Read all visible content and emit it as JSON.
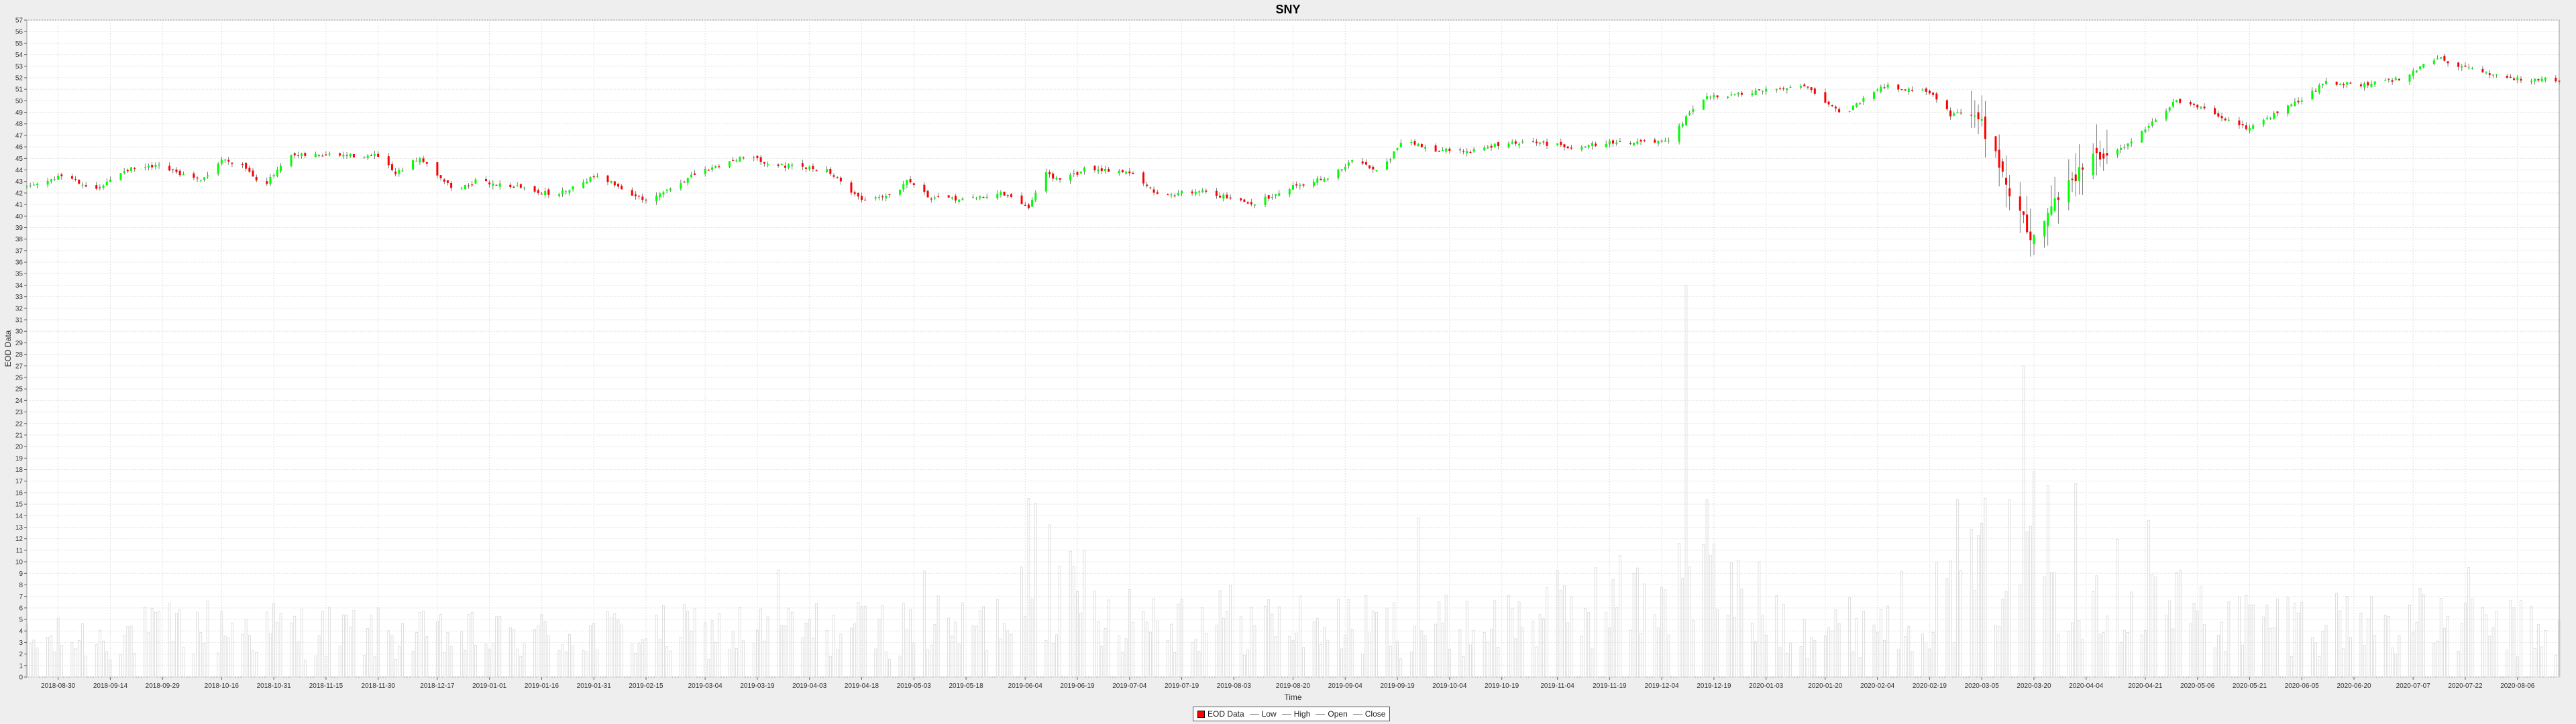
{
  "chart_data": {
    "type": "candlestick",
    "title": "SNY",
    "xlabel": "Time",
    "ylabel": "EOD Data",
    "ylim": [
      0,
      57
    ],
    "yticks": [
      0,
      1,
      2,
      3,
      4,
      5,
      6,
      7,
      8,
      9,
      10,
      11,
      12,
      13,
      14,
      15,
      16,
      17,
      18,
      19,
      20,
      21,
      22,
      23,
      24,
      25,
      26,
      27,
      28,
      29,
      30,
      31,
      32,
      33,
      34,
      35,
      36,
      37,
      38,
      39,
      40,
      41,
      42,
      43,
      44,
      45,
      46,
      47,
      48,
      49,
      50,
      51,
      52,
      53,
      54,
      55,
      56,
      57
    ],
    "x_start": "2018-08-21",
    "x_end": "2020-08-18",
    "xticks": [
      "2018-08-30",
      "2018-09-14",
      "2018-09-29",
      "2018-10-16",
      "2018-10-31",
      "2018-11-15",
      "2018-11-30",
      "2018-12-17",
      "2019-01-01",
      "2019-01-16",
      "2019-01-31",
      "2019-02-15",
      "2019-03-04",
      "2019-03-19",
      "2019-04-03",
      "2019-04-18",
      "2019-05-03",
      "2019-05-18",
      "2019-06-04",
      "2019-06-19",
      "2019-07-04",
      "2019-07-19",
      "2019-08-03",
      "2019-08-20",
      "2019-09-04",
      "2019-09-19",
      "2019-10-04",
      "2019-10-19",
      "2019-11-04",
      "2019-11-19",
      "2019-12-04",
      "2019-12-19",
      "2020-01-03",
      "2020-01-20",
      "2020-02-04",
      "2020-02-19",
      "2020-03-05",
      "2020-03-20",
      "2020-04-04",
      "2020-04-21",
      "2020-05-06",
      "2020-05-21",
      "2020-06-05",
      "2020-06-20",
      "2020-07-07",
      "2020-07-22",
      "2020-08-06"
    ],
    "close_path": [
      [
        "2018-08-21",
        42.5
      ],
      [
        "2018-09-01",
        43.6
      ],
      [
        "2018-09-10",
        42.2
      ],
      [
        "2018-09-18",
        44.0
      ],
      [
        "2018-09-28",
        44.3
      ],
      [
        "2018-10-10",
        43.0
      ],
      [
        "2018-10-16",
        44.9
      ],
      [
        "2018-10-22",
        44.5
      ],
      [
        "2018-10-28",
        42.6
      ],
      [
        "2018-11-05",
        45.2
      ],
      [
        "2018-11-15",
        45.3
      ],
      [
        "2018-11-30",
        45.2
      ],
      [
        "2018-12-05",
        43.6
      ],
      [
        "2018-12-12",
        45.1
      ],
      [
        "2018-12-22",
        42.2
      ],
      [
        "2018-12-28",
        43.0
      ],
      [
        "2019-01-08",
        42.6
      ],
      [
        "2019-01-20",
        41.8
      ],
      [
        "2019-02-01",
        43.6
      ],
      [
        "2019-02-15",
        41.2
      ],
      [
        "2019-03-01",
        43.6
      ],
      [
        "2019-03-15",
        45.2
      ],
      [
        "2019-03-25",
        44.4
      ],
      [
        "2019-04-08",
        44.0
      ],
      [
        "2019-04-18",
        41.4
      ],
      [
        "2019-04-28",
        42.0
      ],
      [
        "2019-05-01",
        43.3
      ],
      [
        "2019-05-08",
        41.5
      ],
      [
        "2019-05-20",
        41.5
      ],
      [
        "2019-05-28",
        42.0
      ],
      [
        "2019-06-05",
        40.8
      ],
      [
        "2019-06-10",
        43.8
      ],
      [
        "2019-06-14",
        43.0
      ],
      [
        "2019-06-22",
        44.2
      ],
      [
        "2019-07-04",
        43.8
      ],
      [
        "2019-07-12",
        41.8
      ],
      [
        "2019-07-25",
        42.2
      ],
      [
        "2019-08-08",
        41.0
      ],
      [
        "2019-08-20",
        42.6
      ],
      [
        "2019-08-31",
        43.4
      ],
      [
        "2019-09-06",
        44.8
      ],
      [
        "2019-09-14",
        44.0
      ],
      [
        "2019-09-21",
        46.6
      ],
      [
        "2019-09-28",
        45.8
      ],
      [
        "2019-10-10",
        45.6
      ],
      [
        "2019-10-18",
        46.2
      ],
      [
        "2019-10-28",
        46.4
      ],
      [
        "2019-11-08",
        46.0
      ],
      [
        "2019-11-20",
        46.4
      ],
      [
        "2019-12-06",
        46.4
      ],
      [
        "2019-12-15",
        50.2
      ],
      [
        "2019-12-28",
        50.6
      ],
      [
        "2020-01-14",
        51.4
      ],
      [
        "2020-01-25",
        48.8
      ],
      [
        "2020-02-05",
        51.3
      ],
      [
        "2020-02-19",
        50.8
      ],
      [
        "2020-02-25",
        48.8
      ],
      [
        "2020-03-02",
        49.2
      ],
      [
        "2020-03-08",
        46.4
      ],
      [
        "2020-03-13",
        42.0
      ],
      [
        "2020-03-19",
        38.2
      ],
      [
        "2020-03-26",
        41.4
      ],
      [
        "2020-04-04",
        44.6
      ],
      [
        "2020-04-14",
        45.8
      ],
      [
        "2020-04-24",
        48.4
      ],
      [
        "2020-04-30",
        50.0
      ],
      [
        "2020-05-08",
        49.2
      ],
      [
        "2020-05-20",
        47.6
      ],
      [
        "2020-06-02",
        49.6
      ],
      [
        "2020-06-12",
        51.6
      ],
      [
        "2020-06-24",
        51.4
      ],
      [
        "2020-07-04",
        52.0
      ],
      [
        "2020-07-14",
        53.8
      ],
      [
        "2020-07-22",
        52.8
      ],
      [
        "2020-08-05",
        51.9
      ],
      [
        "2020-08-18",
        51.8
      ]
    ],
    "volume_pattern": [
      [
        "2018-08-21",
        3.0
      ],
      [
        "2018-10-15",
        4.5
      ],
      [
        "2018-12-20",
        3.5
      ],
      [
        "2019-03-01",
        4.0
      ],
      [
        "2019-05-25",
        4.5
      ],
      [
        "2019-06-05",
        8.5
      ],
      [
        "2019-06-25",
        6.0
      ],
      [
        "2019-09-01",
        4.5
      ],
      [
        "2019-10-10",
        4.5
      ],
      [
        "2019-11-25",
        7.0
      ],
      [
        "2019-12-15",
        8.5
      ],
      [
        "2020-01-20",
        4.0
      ],
      [
        "2020-02-25",
        7.0
      ],
      [
        "2020-03-18",
        11.0
      ],
      [
        "2020-04-10",
        8.0
      ],
      [
        "2020-05-15",
        5.0
      ],
      [
        "2020-07-01",
        5.0
      ],
      [
        "2020-08-18",
        4.0
      ]
    ],
    "volume_spikes": [
      [
        "2018-09-29",
        9.8
      ],
      [
        "2018-10-28",
        14.2
      ],
      [
        "2019-03-25",
        9.3
      ],
      [
        "2019-05-06",
        9.2
      ],
      [
        "2019-06-05",
        15.5
      ],
      [
        "2019-06-07",
        15.1
      ],
      [
        "2019-06-11",
        13.2
      ],
      [
        "2019-06-21",
        11.0
      ],
      [
        "2019-09-25",
        13.8
      ],
      [
        "2019-12-11",
        34.0
      ],
      [
        "2019-12-17",
        15.4
      ],
      [
        "2020-02-27",
        15.4
      ],
      [
        "2020-03-06",
        15.5
      ],
      [
        "2020-03-17",
        27.0
      ],
      [
        "2020-03-20",
        17.8
      ],
      [
        "2020-03-24",
        16.6
      ],
      [
        "2020-04-01",
        16.8
      ],
      [
        "2020-04-22",
        13.6
      ],
      [
        "2020-07-23",
        9.5
      ]
    ],
    "colors": {
      "up": "#00ff00",
      "down": "#ff0000",
      "volume": "#d8d8d8",
      "grid": "#e2e2e2",
      "wick": "#444444"
    },
    "grid": true,
    "legend_position": "bottom-center"
  },
  "legend": {
    "items": [
      {
        "label": "EOD Data",
        "kind": "box"
      },
      {
        "label": "Low",
        "kind": "line"
      },
      {
        "label": "High",
        "kind": "line"
      },
      {
        "label": "Open",
        "kind": "line"
      },
      {
        "label": "Close",
        "kind": "line"
      }
    ]
  }
}
